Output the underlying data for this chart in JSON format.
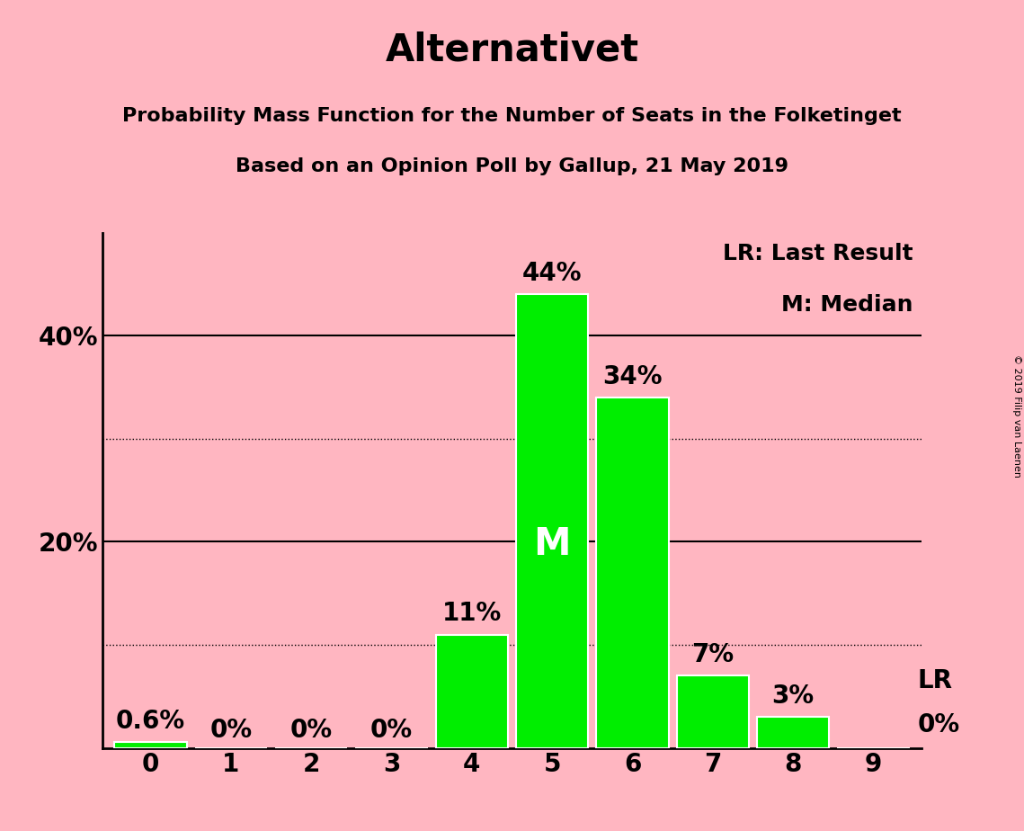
{
  "title": "Alternativet",
  "subtitle1": "Probability Mass Function for the Number of Seats in the Folketinget",
  "subtitle2": "Based on an Opinion Poll by Gallup, 21 May 2019",
  "copyright": "© 2019 Filip van Laenen",
  "categories": [
    0,
    1,
    2,
    3,
    4,
    5,
    6,
    7,
    8,
    9
  ],
  "values": [
    0.6,
    0.0,
    0.0,
    0.0,
    11.0,
    44.0,
    34.0,
    7.0,
    3.0,
    0.0
  ],
  "value_labels": [
    "0.6%",
    "0%",
    "0%",
    "0%",
    "11%",
    "44%",
    "34%",
    "7%",
    "3%",
    "0%"
  ],
  "bar_color": "#00ee00",
  "bar_edge_color": "#ffffff",
  "background_color": "#ffb6c1",
  "ylim": [
    0,
    50
  ],
  "yticks": [
    20,
    40
  ],
  "ytick_labels": [
    "20%",
    "40%"
  ],
  "solid_gridlines": [
    20,
    40
  ],
  "dotted_gridlines": [
    10,
    30
  ],
  "median_bar": 5,
  "median_label": "M",
  "last_result_bar": 9,
  "last_result_label": "LR",
  "last_result_value_label": "0%",
  "legend_text1": "LR: Last Result",
  "legend_text2": "M: Median",
  "title_fontsize": 30,
  "subtitle_fontsize": 16,
  "bar_label_fontsize": 20,
  "axis_tick_fontsize": 20,
  "legend_fontsize": 18,
  "median_fontsize": 30,
  "copyright_fontsize": 8
}
